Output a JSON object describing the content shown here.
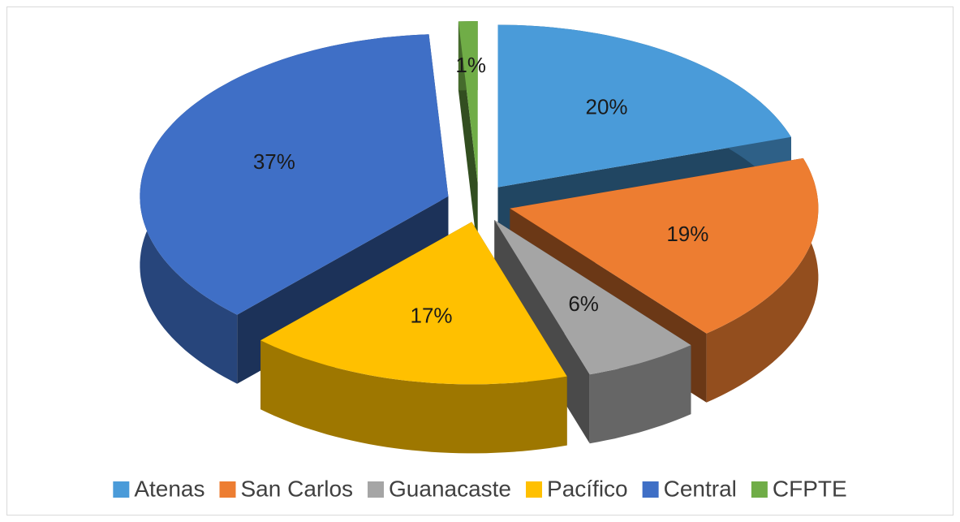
{
  "chart_data": {
    "type": "pie",
    "categories": [
      "Atenas",
      "San Carlos",
      "Guanacaste",
      "Pacífico",
      "Central",
      "CFPTE"
    ],
    "values": [
      20,
      19,
      6,
      17,
      37,
      1
    ],
    "value_labels": [
      "20%",
      "19%",
      "6%",
      "17%",
      "37%",
      "1%"
    ],
    "colors": [
      "#4a9bd9",
      "#ed7d31",
      "#a5a5a5",
      "#ffc000",
      "#3f6fc6",
      "#70ad47"
    ],
    "legend": "bottom"
  }
}
